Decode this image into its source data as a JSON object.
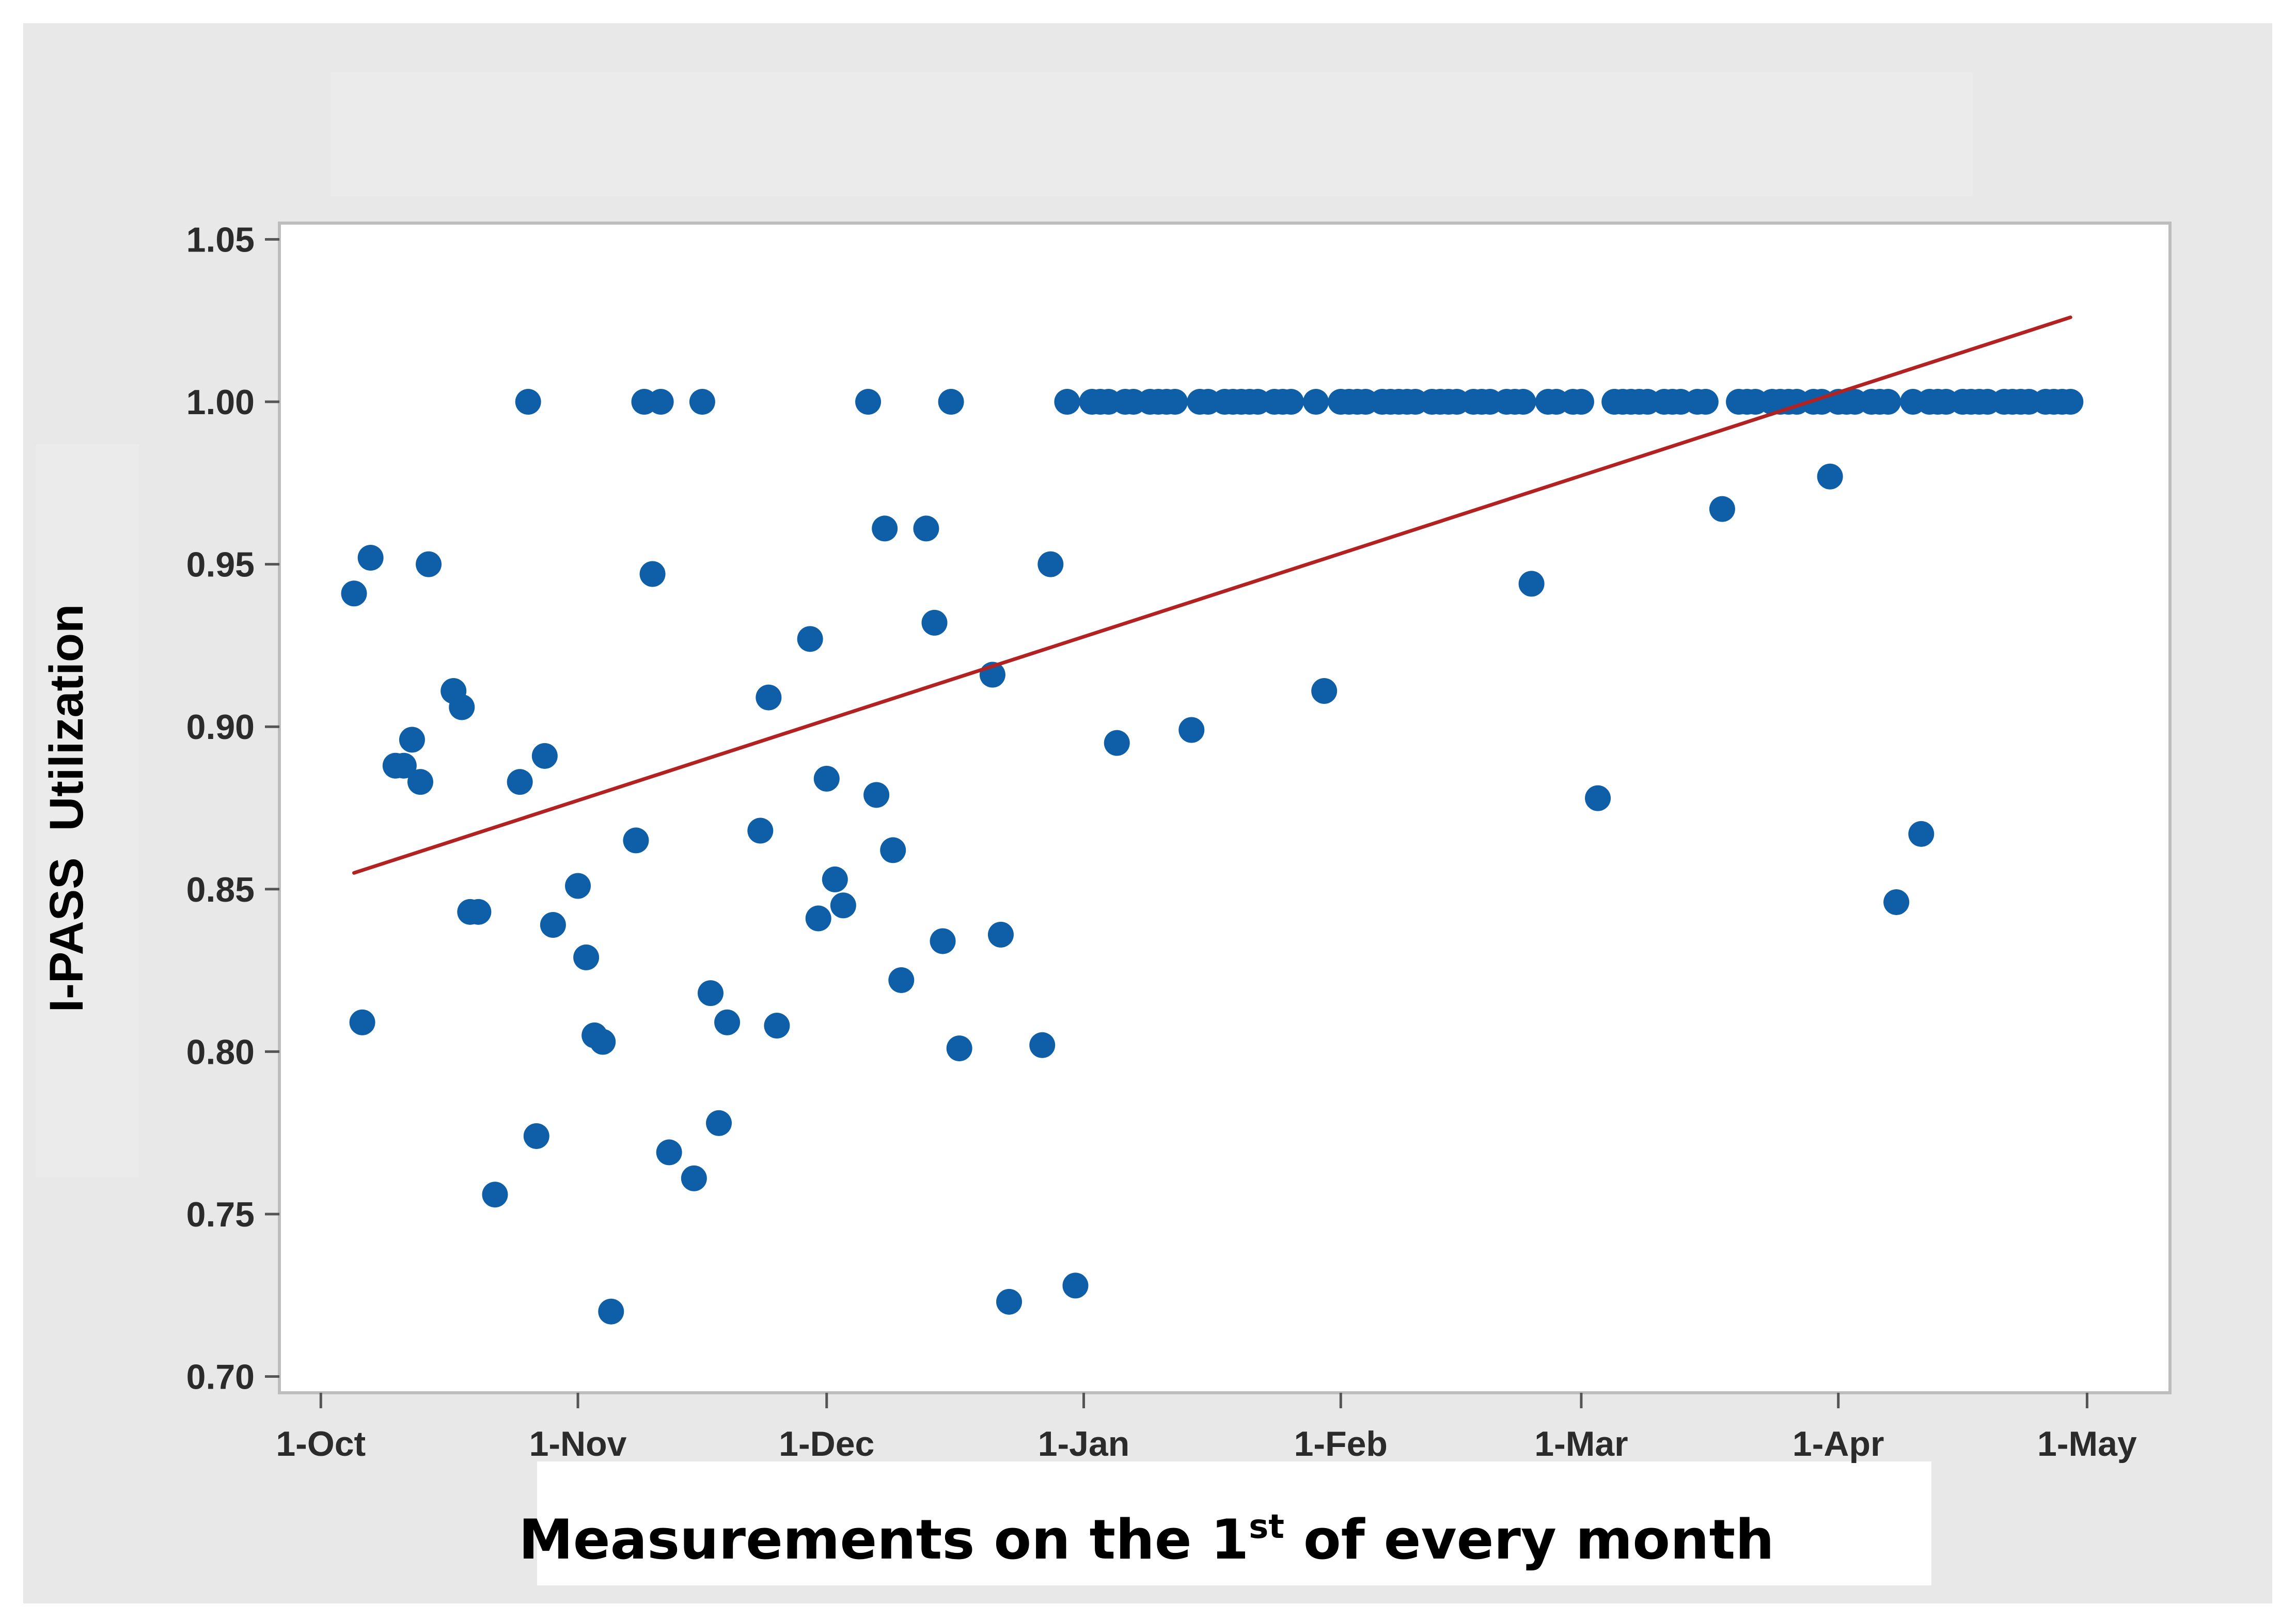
{
  "colors": {
    "points": "#0f5ea8",
    "trend": "#b22222",
    "plot_bg": "#ffffff",
    "frame_bg": "#e8e8e8"
  },
  "chart_data": {
    "type": "scatter",
    "title": "",
    "xlabel": "Measurements on the 1st of every month",
    "xlabel_parts": {
      "before": "Measurements on the 1",
      "sup": "st",
      "after": " of every month"
    },
    "ylabel": "I-PASS  Utilization",
    "grid": false,
    "legend": "none",
    "x_axis": {
      "ticks": [
        {
          "date": "2023-10-01",
          "label": "1-Oct"
        },
        {
          "date": "2023-11-01",
          "label": "1-Nov"
        },
        {
          "date": "2023-12-01",
          "label": "1-Dec"
        },
        {
          "date": "2024-01-01",
          "label": "1-Jan"
        },
        {
          "date": "2024-02-01",
          "label": "1-Feb"
        },
        {
          "date": "2024-03-01",
          "label": "1-Mar"
        },
        {
          "date": "2024-04-01",
          "label": "1-Apr"
        },
        {
          "date": "2024-05-01",
          "label": "1-May"
        }
      ],
      "range": [
        "2023-09-26",
        "2024-05-11"
      ]
    },
    "y_axis": {
      "ticks": [
        "0.70",
        "0.75",
        "0.80",
        "0.85",
        "0.90",
        "0.95",
        "1.00",
        "1.05"
      ],
      "ylim": [
        0.695,
        1.055
      ]
    },
    "points": [
      [
        "2023-10-05",
        0.941
      ],
      [
        "2023-10-06",
        0.809
      ],
      [
        "2023-10-07",
        0.952
      ],
      [
        "2023-10-10",
        0.888
      ],
      [
        "2023-10-11",
        0.888
      ],
      [
        "2023-10-12",
        0.896
      ],
      [
        "2023-10-13",
        0.883
      ],
      [
        "2023-10-14",
        0.95
      ],
      [
        "2023-10-17",
        0.911
      ],
      [
        "2023-10-18",
        0.906
      ],
      [
        "2023-10-19",
        0.843
      ],
      [
        "2023-10-20",
        0.843
      ],
      [
        "2023-10-22",
        0.756
      ],
      [
        "2023-10-25",
        0.883
      ],
      [
        "2023-10-26",
        1.0
      ],
      [
        "2023-10-27",
        0.774
      ],
      [
        "2023-10-28",
        0.891
      ],
      [
        "2023-10-29",
        0.839
      ],
      [
        "2023-11-01",
        0.851
      ],
      [
        "2023-11-02",
        0.829
      ],
      [
        "2023-11-03",
        0.805
      ],
      [
        "2023-11-04",
        0.803
      ],
      [
        "2023-11-05",
        0.72
      ],
      [
        "2023-11-08",
        0.865
      ],
      [
        "2023-11-09",
        1.0
      ],
      [
        "2023-11-10",
        0.947
      ],
      [
        "2023-11-11",
        1.0
      ],
      [
        "2023-11-12",
        0.769
      ],
      [
        "2023-11-15",
        0.761
      ],
      [
        "2023-11-16",
        1.0
      ],
      [
        "2023-11-17",
        0.818
      ],
      [
        "2023-11-18",
        0.778
      ],
      [
        "2023-11-19",
        0.809
      ],
      [
        "2023-11-23",
        0.868
      ],
      [
        "2023-11-24",
        0.909
      ],
      [
        "2023-11-25",
        0.808
      ],
      [
        "2023-11-29",
        0.927
      ],
      [
        "2023-11-30",
        0.841
      ],
      [
        "2023-12-01",
        0.884
      ],
      [
        "2023-12-02",
        0.853
      ],
      [
        "2023-12-03",
        0.845
      ],
      [
        "2023-12-06",
        1.0
      ],
      [
        "2023-12-07",
        0.879
      ],
      [
        "2023-12-08",
        0.961
      ],
      [
        "2023-12-09",
        0.862
      ],
      [
        "2023-12-10",
        0.822
      ],
      [
        "2023-12-13",
        0.961
      ],
      [
        "2023-12-14",
        0.932
      ],
      [
        "2023-12-15",
        0.834
      ],
      [
        "2023-12-16",
        1.0
      ],
      [
        "2023-12-17",
        0.801
      ],
      [
        "2023-12-21",
        0.916
      ],
      [
        "2023-12-22",
        0.836
      ],
      [
        "2023-12-23",
        0.723
      ],
      [
        "2023-12-27",
        0.802
      ],
      [
        "2023-12-28",
        0.95
      ],
      [
        "2023-12-30",
        1.0
      ],
      [
        "2023-12-31",
        0.728
      ],
      [
        "2024-01-02",
        1.0
      ],
      [
        "2024-01-03",
        1.0
      ],
      [
        "2024-01-04",
        1.0
      ],
      [
        "2024-01-05",
        0.895
      ],
      [
        "2024-01-06",
        1.0
      ],
      [
        "2024-01-07",
        1.0
      ],
      [
        "2024-01-09",
        1.0
      ],
      [
        "2024-01-10",
        1.0
      ],
      [
        "2024-01-11",
        1.0
      ],
      [
        "2024-01-12",
        1.0
      ],
      [
        "2024-01-14",
        0.899
      ],
      [
        "2024-01-15",
        1.0
      ],
      [
        "2024-01-16",
        1.0
      ],
      [
        "2024-01-18",
        1.0
      ],
      [
        "2024-01-19",
        1.0
      ],
      [
        "2024-01-20",
        1.0
      ],
      [
        "2024-01-21",
        1.0
      ],
      [
        "2024-01-22",
        1.0
      ],
      [
        "2024-01-24",
        1.0
      ],
      [
        "2024-01-25",
        1.0
      ],
      [
        "2024-01-26",
        1.0
      ],
      [
        "2024-01-29",
        1.0
      ],
      [
        "2024-01-30",
        0.911
      ],
      [
        "2024-02-01",
        1.0
      ],
      [
        "2024-02-02",
        1.0
      ],
      [
        "2024-02-03",
        1.0
      ],
      [
        "2024-02-04",
        1.0
      ],
      [
        "2024-02-06",
        1.0
      ],
      [
        "2024-02-07",
        1.0
      ],
      [
        "2024-02-08",
        1.0
      ],
      [
        "2024-02-09",
        1.0
      ],
      [
        "2024-02-10",
        1.0
      ],
      [
        "2024-02-12",
        1.0
      ],
      [
        "2024-02-13",
        1.0
      ],
      [
        "2024-02-14",
        1.0
      ],
      [
        "2024-02-15",
        1.0
      ],
      [
        "2024-02-17",
        1.0
      ],
      [
        "2024-02-18",
        1.0
      ],
      [
        "2024-02-19",
        1.0
      ],
      [
        "2024-02-21",
        1.0
      ],
      [
        "2024-02-22",
        1.0
      ],
      [
        "2024-02-23",
        1.0
      ],
      [
        "2024-02-24",
        0.944
      ],
      [
        "2024-02-26",
        1.0
      ],
      [
        "2024-02-27",
        1.0
      ],
      [
        "2024-02-29",
        1.0
      ],
      [
        "2024-03-01",
        1.0
      ],
      [
        "2024-03-03",
        0.878
      ],
      [
        "2024-03-05",
        1.0
      ],
      [
        "2024-03-06",
        1.0
      ],
      [
        "2024-03-07",
        1.0
      ],
      [
        "2024-03-08",
        1.0
      ],
      [
        "2024-03-09",
        1.0
      ],
      [
        "2024-03-11",
        1.0
      ],
      [
        "2024-03-12",
        1.0
      ],
      [
        "2024-03-13",
        1.0
      ],
      [
        "2024-03-15",
        1.0
      ],
      [
        "2024-03-16",
        1.0
      ],
      [
        "2024-03-18",
        0.967
      ],
      [
        "2024-03-20",
        1.0
      ],
      [
        "2024-03-21",
        1.0
      ],
      [
        "2024-03-22",
        1.0
      ],
      [
        "2024-03-24",
        1.0
      ],
      [
        "2024-03-25",
        1.0
      ],
      [
        "2024-03-26",
        1.0
      ],
      [
        "2024-03-27",
        1.0
      ],
      [
        "2024-03-29",
        1.0
      ],
      [
        "2024-03-30",
        1.0
      ],
      [
        "2024-03-31",
        0.977
      ],
      [
        "2024-04-01",
        1.0
      ],
      [
        "2024-04-02",
        1.0
      ],
      [
        "2024-04-03",
        1.0
      ],
      [
        "2024-04-05",
        1.0
      ],
      [
        "2024-04-06",
        1.0
      ],
      [
        "2024-04-07",
        1.0
      ],
      [
        "2024-04-08",
        0.846
      ],
      [
        "2024-04-10",
        1.0
      ],
      [
        "2024-04-11",
        0.867
      ],
      [
        "2024-04-12",
        1.0
      ],
      [
        "2024-04-13",
        1.0
      ],
      [
        "2024-04-14",
        1.0
      ],
      [
        "2024-04-16",
        1.0
      ],
      [
        "2024-04-17",
        1.0
      ],
      [
        "2024-04-18",
        1.0
      ],
      [
        "2024-04-19",
        1.0
      ],
      [
        "2024-04-21",
        1.0
      ],
      [
        "2024-04-22",
        1.0
      ],
      [
        "2024-04-23",
        1.0
      ],
      [
        "2024-04-24",
        1.0
      ],
      [
        "2024-04-26",
        1.0
      ],
      [
        "2024-04-27",
        1.0
      ],
      [
        "2024-04-28",
        1.0
      ],
      [
        "2024-04-29",
        1.0
      ]
    ],
    "trend_line": {
      "start": [
        "2023-10-05",
        0.855
      ],
      "end": [
        "2024-04-29",
        1.026
      ]
    }
  }
}
